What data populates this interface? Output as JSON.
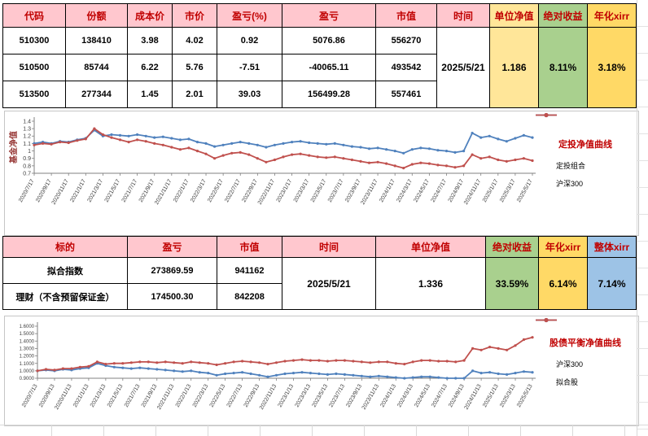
{
  "table1": {
    "headers": [
      "代码",
      "份额",
      "成本价",
      "市价",
      "盈亏(%)",
      "盈亏",
      "市值",
      "时间",
      "单位净值",
      "绝对收益",
      "年化xirr"
    ],
    "rows": [
      [
        "510300",
        "138410",
        "3.98",
        "4.02",
        "0.92",
        "5076.86",
        "556270"
      ],
      [
        "510500",
        "85744",
        "6.22",
        "5.76",
        "-7.51",
        "-40065.11",
        "493542"
      ],
      [
        "513500",
        "277344",
        "1.45",
        "2.01",
        "39.03",
        "156499.28",
        "557461"
      ]
    ],
    "time": "2025/5/21",
    "unit_nav": "1.186",
    "abs_return": "8.11%",
    "annual_xirr": "3.18%"
  },
  "table2": {
    "headers": [
      "标的",
      "盈亏",
      "市值",
      "时间",
      "单位净值",
      "绝对收益",
      "年化xirr",
      "整体xirr"
    ],
    "rows": [
      [
        "拟合指数",
        "273869.59",
        "941162"
      ],
      [
        "理财（不含预留保证金）",
        "174500.30",
        "842208"
      ]
    ],
    "time": "2025/5/21",
    "unit_nav": "1.336",
    "abs_return": "33.59%",
    "annual_xirr": "6.14%",
    "overall_xirr": "7.14%"
  },
  "colors": {
    "header_pink": "#FFC7CE",
    "header_text_red": "#C00000",
    "nav_yellow": "#FFE699",
    "return_green": "#A9D08E",
    "xirr_orange": "#FFD966",
    "overall_blue": "#9DC3E6",
    "series_blue": "#4F81BD",
    "series_red": "#C0504D",
    "chart_title_red": "#C00000"
  },
  "chart_data": [
    {
      "type": "line",
      "title": "定投净值曲线",
      "ylabel": "基金净值",
      "ylim": [
        0.7,
        1.4
      ],
      "yticks": [
        0.7,
        0.8,
        0.9,
        1,
        1.1,
        1.2,
        1.3,
        1.4
      ],
      "y_tick_labels": [
        "0.7",
        "0.8",
        "0.9",
        "1",
        "1.1",
        "1.2",
        "1.3",
        "1.4"
      ],
      "x_tick_labels": [
        "2020/7/17",
        "2020/9/17",
        "2020/11/17",
        "2021/1/17",
        "2021/3/17",
        "2021/5/17",
        "2021/7/17",
        "2021/9/17",
        "2021/11/17",
        "2022/1/17",
        "2022/3/17",
        "2022/5/17",
        "2022/7/17",
        "2022/9/17",
        "2022/11/17",
        "2023/1/17",
        "2023/3/17",
        "2023/5/17",
        "2023/7/17",
        "2023/9/17",
        "2023/11/17",
        "2024/1/17",
        "2024/3/17",
        "2024/5/17",
        "2024/7/17",
        "2024/9/17",
        "2024/11/17",
        "2025/1/17",
        "2025/3/17",
        "2025/5/17"
      ],
      "legend_position": "right",
      "grid": false,
      "series": [
        {
          "name": "定投组合",
          "color": "#4F81BD",
          "values": [
            1.1,
            1.12,
            1.1,
            1.13,
            1.12,
            1.15,
            1.17,
            1.28,
            1.2,
            1.22,
            1.21,
            1.2,
            1.22,
            1.2,
            1.18,
            1.19,
            1.17,
            1.15,
            1.16,
            1.12,
            1.1,
            1.06,
            1.08,
            1.1,
            1.12,
            1.1,
            1.08,
            1.05,
            1.08,
            1.1,
            1.12,
            1.13,
            1.11,
            1.1,
            1.09,
            1.1,
            1.08,
            1.06,
            1.05,
            1.03,
            1.04,
            1.02,
            1.0,
            0.97,
            1.02,
            1.04,
            1.03,
            1.01,
            1.0,
            0.98,
            1.0,
            1.24,
            1.18,
            1.2,
            1.16,
            1.13,
            1.17,
            1.21,
            1.18
          ]
        },
        {
          "name": "沪深300",
          "color": "#C0504D",
          "values": [
            1.08,
            1.1,
            1.09,
            1.12,
            1.11,
            1.14,
            1.16,
            1.3,
            1.22,
            1.18,
            1.15,
            1.12,
            1.15,
            1.13,
            1.1,
            1.08,
            1.05,
            1.02,
            1.04,
            1.0,
            0.96,
            0.9,
            0.94,
            0.97,
            0.98,
            0.95,
            0.9,
            0.85,
            0.88,
            0.92,
            0.95,
            0.96,
            0.94,
            0.92,
            0.91,
            0.92,
            0.9,
            0.88,
            0.86,
            0.84,
            0.85,
            0.83,
            0.8,
            0.77,
            0.82,
            0.84,
            0.83,
            0.81,
            0.8,
            0.78,
            0.8,
            0.95,
            0.9,
            0.92,
            0.88,
            0.86,
            0.88,
            0.9,
            0.87
          ]
        }
      ]
    },
    {
      "type": "line",
      "title": "股债平衡净值曲线",
      "ylabel": "",
      "ylim": [
        0.9,
        1.6
      ],
      "yticks": [
        0.9,
        1,
        1.1,
        1.2,
        1.3,
        1.4,
        1.5,
        1.6
      ],
      "y_tick_labels": [
        "0.9000",
        "1.0000",
        "1.1000",
        "1.2000",
        "1.3000",
        "1.4000",
        "1.5000",
        "1.6000"
      ],
      "x_tick_labels": [
        "2020/7/13",
        "2020/9/13",
        "2020/11/13",
        "2021/1/13",
        "2021/3/13",
        "2021/5/13",
        "2021/7/13",
        "2021/9/13",
        "2021/11/13",
        "2022/1/13",
        "2022/3/13",
        "2022/5/13",
        "2022/7/13",
        "2022/9/13",
        "2022/11/13",
        "2023/1/13",
        "2023/3/13",
        "2023/5/13",
        "2023/7/13",
        "2023/9/13",
        "2023/11/13",
        "2024/1/13",
        "2024/3/13",
        "2024/5/13",
        "2024/7/13",
        "2024/9/13",
        "2024/11/13",
        "2025/1/13",
        "2025/3/13",
        "2025/5/13"
      ],
      "legend_position": "right",
      "grid": false,
      "series": [
        {
          "name": "沪深300",
          "color": "#4F81BD",
          "values": [
            1.0,
            1.01,
            1.0,
            1.02,
            1.01,
            1.03,
            1.04,
            1.1,
            1.07,
            1.05,
            1.04,
            1.03,
            1.04,
            1.03,
            1.02,
            1.01,
            1.0,
            0.99,
            1.0,
            0.98,
            0.97,
            0.94,
            0.96,
            0.97,
            0.98,
            0.96,
            0.94,
            0.92,
            0.94,
            0.96,
            0.97,
            0.98,
            0.97,
            0.96,
            0.95,
            0.96,
            0.95,
            0.94,
            0.93,
            0.92,
            0.93,
            0.92,
            0.91,
            0.9,
            0.91,
            0.92,
            0.92,
            0.91,
            0.9,
            0.9,
            0.9,
            1.0,
            0.97,
            0.98,
            0.96,
            0.95,
            0.97,
            0.99,
            0.98
          ]
        },
        {
          "name": "拟合股",
          "color": "#C0504D",
          "values": [
            1.0,
            1.02,
            1.01,
            1.03,
            1.03,
            1.05,
            1.06,
            1.12,
            1.09,
            1.1,
            1.1,
            1.11,
            1.12,
            1.12,
            1.11,
            1.12,
            1.11,
            1.1,
            1.12,
            1.11,
            1.1,
            1.08,
            1.1,
            1.12,
            1.13,
            1.12,
            1.11,
            1.09,
            1.11,
            1.13,
            1.14,
            1.15,
            1.14,
            1.14,
            1.13,
            1.14,
            1.14,
            1.13,
            1.12,
            1.11,
            1.12,
            1.12,
            1.1,
            1.09,
            1.12,
            1.14,
            1.14,
            1.13,
            1.13,
            1.12,
            1.14,
            1.3,
            1.28,
            1.32,
            1.3,
            1.28,
            1.34,
            1.42,
            1.45
          ]
        }
      ]
    }
  ]
}
